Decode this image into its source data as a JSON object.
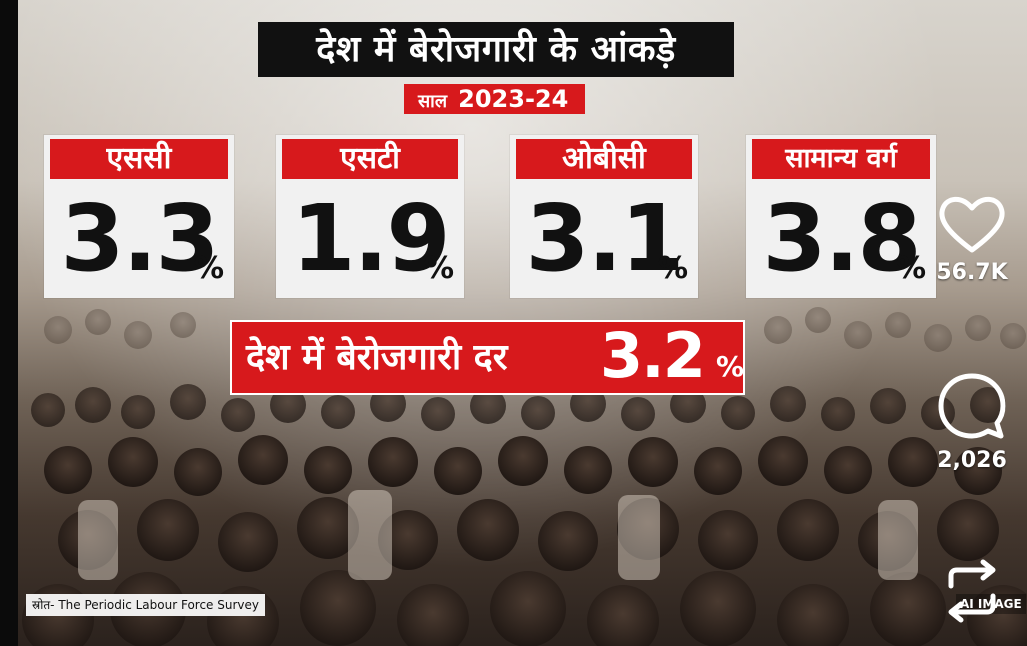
{
  "poster": {
    "title": "देश में बेरोजगारी के आंकड़े",
    "year_label": "साल",
    "year_value": "2023-24",
    "cards": [
      {
        "category": "एससी",
        "value": "3.3",
        "unit": "%"
      },
      {
        "category": "एसटी",
        "value": "1.9",
        "unit": "%"
      },
      {
        "category": "ओबीसी",
        "value": "3.1",
        "unit": "%"
      },
      {
        "category": "सामान्य वर्ग",
        "value": "3.8",
        "unit": "%"
      }
    ],
    "overall": {
      "label": "देश में बेरोजगारी दर",
      "value": "3.2",
      "unit": "%"
    },
    "source": "स्रोत- The Periodic Labour Force Survey",
    "watermark": "AI IMAGE"
  },
  "actions": {
    "likes": "56.7K",
    "comments": "2,026",
    "like_icon": "heart-icon",
    "comment_icon": "comment-icon",
    "repost_icon": "repost-icon"
  }
}
